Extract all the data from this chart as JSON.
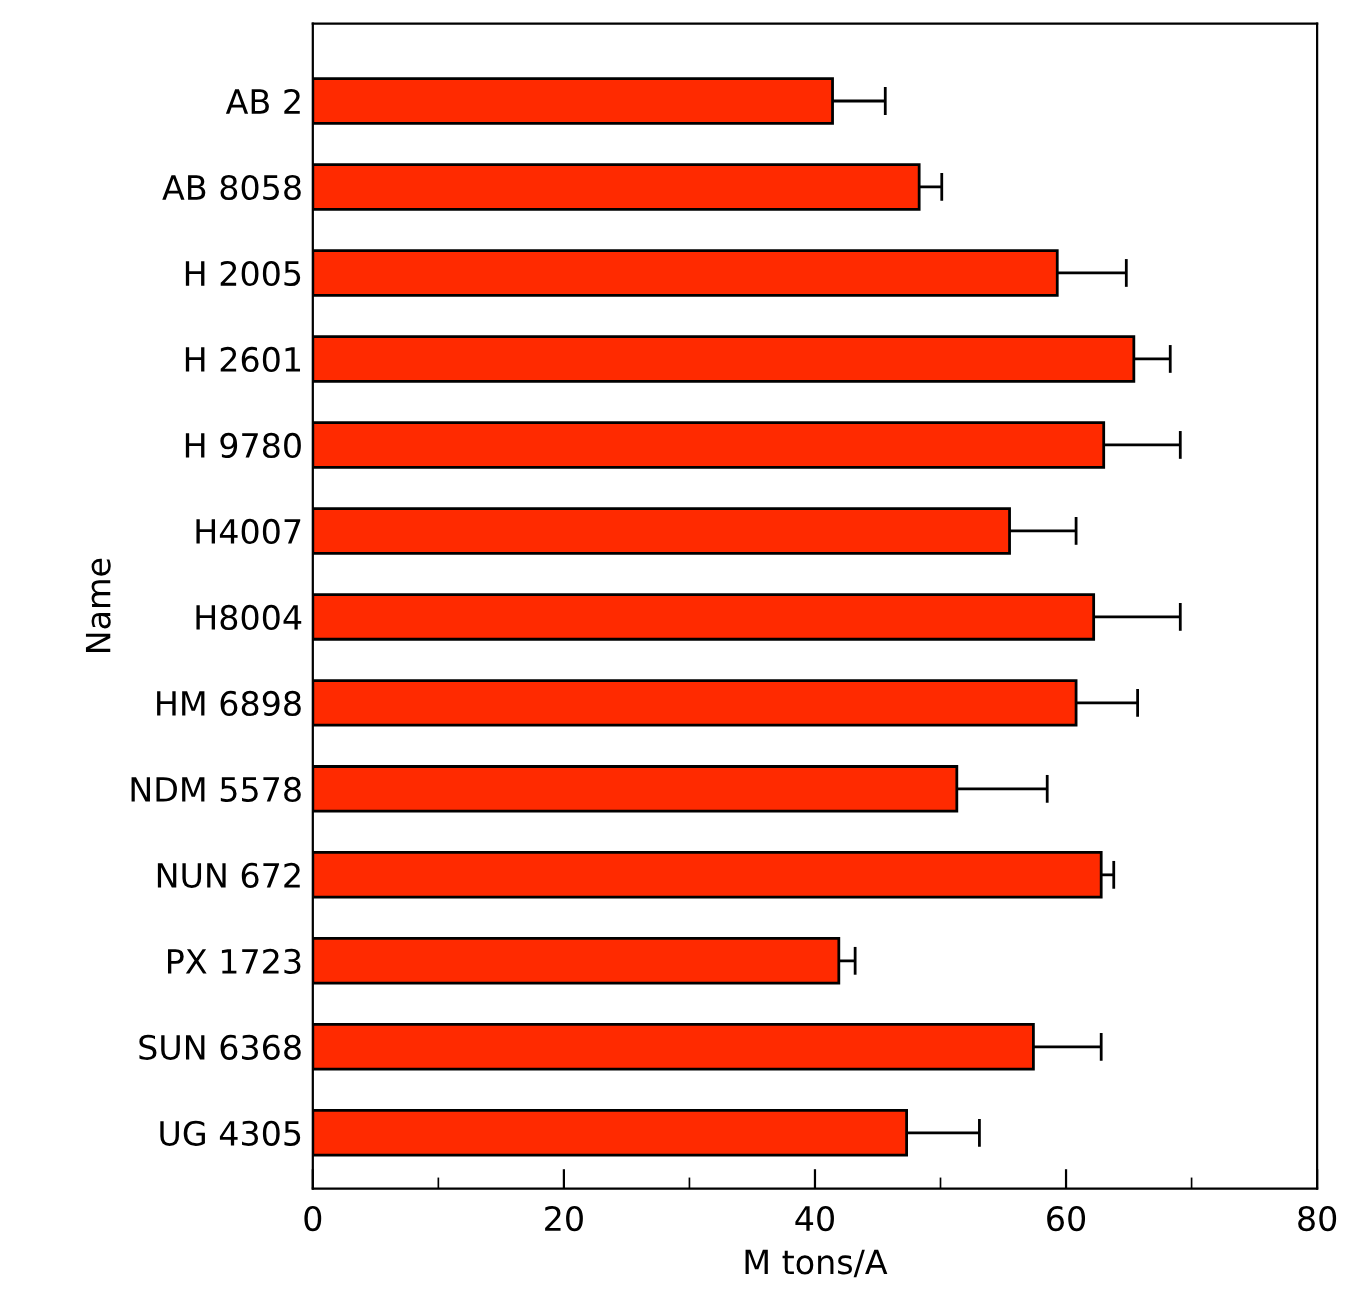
{
  "chart_data": {
    "type": "bar",
    "orientation": "horizontal",
    "xlabel": "M tons/A",
    "ylabel": "Name",
    "categories": [
      "AB 2",
      "AB 8058",
      "H 2005",
      "H 2601",
      "H 9780",
      "H4007",
      "H8004",
      "HM 6898",
      "NDM 5578",
      "NUN 672",
      "PX 1723",
      "SUN 6368",
      "UG 4305"
    ],
    "values": [
      41.4,
      48.3,
      59.3,
      65.4,
      63.0,
      55.5,
      62.2,
      60.8,
      51.3,
      62.8,
      41.9,
      57.4,
      47.3
    ],
    "errors": [
      4.2,
      1.8,
      5.5,
      2.9,
      6.1,
      5.3,
      6.9,
      4.9,
      7.2,
      1.0,
      1.3,
      5.4,
      5.8
    ],
    "color": "#ff2a00",
    "xlim": [
      0,
      80
    ],
    "xticks": [
      0,
      {
        "value": 10,
        "label": null
      },
      20,
      {
        "value": 30,
        "label": null
      },
      40,
      {
        "value": 50,
        "label": null
      },
      60,
      {
        "value": 70,
        "label": null
      },
      80
    ],
    "grid": false
  }
}
